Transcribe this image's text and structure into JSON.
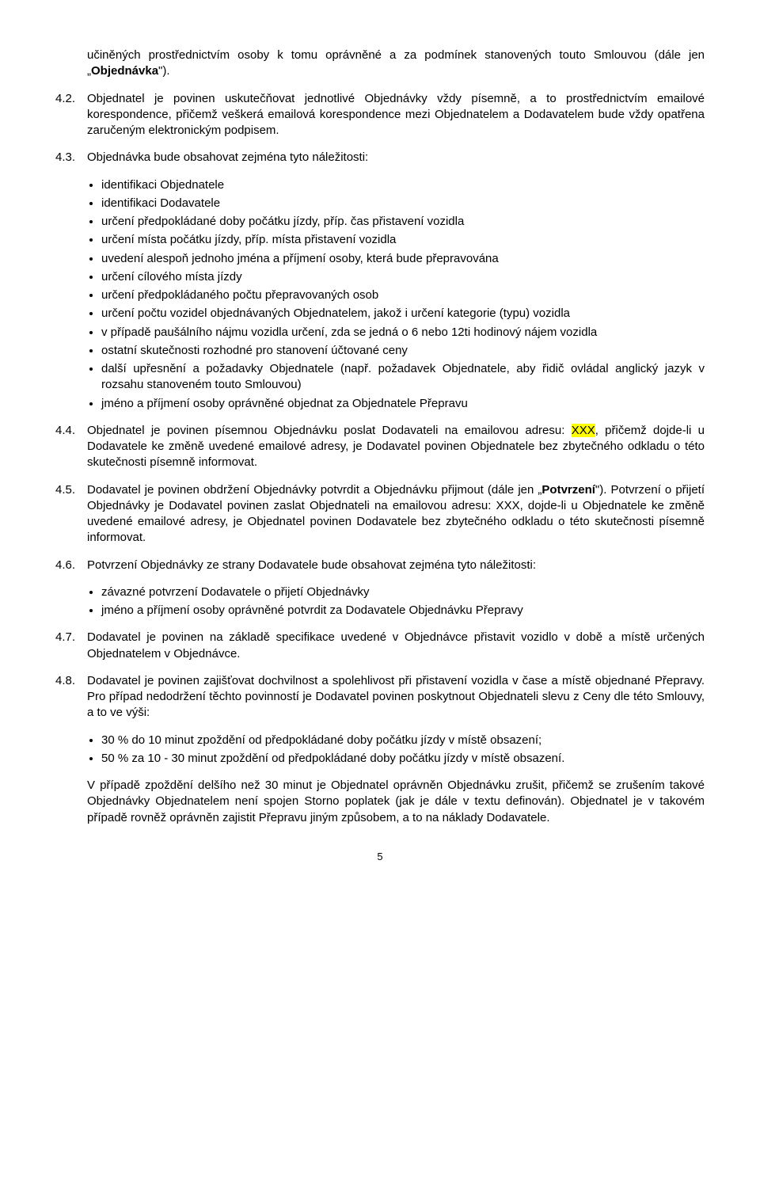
{
  "p_intro": "učiněných prostřednictvím osoby k tomu oprávněné a za podmínek stanovených touto Smlouvou (dále jen „",
  "p_intro_bold": "Objednávka",
  "p_intro_end": "\").",
  "s42_num": "4.2.",
  "s42": "Objednatel je povinen uskutečňovat jednotlivé Objednávky vždy písemně, a to prostřednictvím emailové korespondence, přičemž veškerá emailová korespondence mezi Objednatelem a Dodavatelem bude vždy opatřena zaručeným elektronickým podpisem.",
  "s43_num": "4.3.",
  "s43": "Objednávka bude obsahovat zejména tyto náležitosti:",
  "s43_items": [
    "identifikaci Objednatele",
    "identifikaci Dodavatele",
    "určení předpokládané doby počátku jízdy, příp. čas přistavení vozidla",
    "určení místa počátku jízdy, příp. místa přistavení vozidla",
    "uvedení alespoň jednoho jména a příjmení osoby, která bude přepravována",
    "určení cílového místa jízdy",
    "určení předpokládaného počtu přepravovaných osob",
    "určení počtu vozidel objednávaných Objednatelem, jakož i určení kategorie (typu) vozidla",
    "v případě paušálního nájmu vozidla určení, zda se jedná o 6 nebo 12ti hodinový nájem vozidla",
    "ostatní skutečnosti rozhodné pro stanovení účtované ceny",
    "další upřesnění a požadavky Objednatele (např. požadavek Objednatele, aby řidič ovládal anglický jazyk v rozsahu stanoveném touto Smlouvou)",
    "jméno a příjmení osoby oprávněné objednat za Objednatele Přepravu"
  ],
  "s44_num": "4.4.",
  "s44_a": "Objednatel je povinen písemnou Objednávku poslat Dodavateli na emailovou adresu: ",
  "s44_hl": "XXX",
  "s44_b": ", přičemž dojde-li u Dodavatele ke změně uvedené emailové adresy, je Dodavatel povinen Objednatele bez zbytečného odkladu o této skutečnosti písemně informovat.",
  "s45_num": "4.5.",
  "s45_a": "Dodavatel je povinen obdržení Objednávky potvrdit a Objednávku přijmout (dále jen „",
  "s45_bold": "Potvrzení",
  "s45_b": "\"). Potvrzení o přijetí Objednávky je Dodavatel povinen zaslat Objednateli na emailovou adresu: XXX, dojde-li u Objednatele ke změně uvedené emailové adresy, je Objednatel povinen Dodavatele bez zbytečného odkladu o této skutečnosti písemně informovat.",
  "s46_num": "4.6.",
  "s46": "Potvrzení Objednávky ze strany Dodavatele bude obsahovat zejména tyto náležitosti:",
  "s46_items": [
    "závazné potvrzení Dodavatele o přijetí Objednávky",
    "jméno a příjmení osoby oprávněné potvrdit za Dodavatele Objednávku Přepravy"
  ],
  "s47_num": "4.7.",
  "s47": "Dodavatel je povinen na základě specifikace uvedené v Objednávce přistavit vozidlo v době a místě určených Objednatelem v Objednávce.",
  "s48_num": "4.8.",
  "s48": "Dodavatel je povinen zajišťovat dochvilnost a spolehlivost při přistavení vozidla v čase a místě objednané Přepravy. Pro případ nedodržení těchto povinností je Dodavatel povinen poskytnout Objednateli slevu z Ceny dle této Smlouvy, a to ve výši:",
  "s48_items": [
    "30 % do 10 minut zpoždění od předpokládané doby počátku jízdy v místě obsazení;",
    "50 % za 10 - 30 minut zpoždění od předpokládané doby počátku jízdy v místě obsazení."
  ],
  "s48_tail": "V případě zpoždění delšího než 30 minut je Objednatel oprávněn Objednávku zrušit, přičemž se zrušením takové Objednávky Objednatelem není spojen Storno poplatek (jak je dále v textu definován). Objednatel je v takovém případě rovněž oprávněn zajistit Přepravu jiným způsobem, a to na náklady Dodavatele.",
  "page": "5"
}
